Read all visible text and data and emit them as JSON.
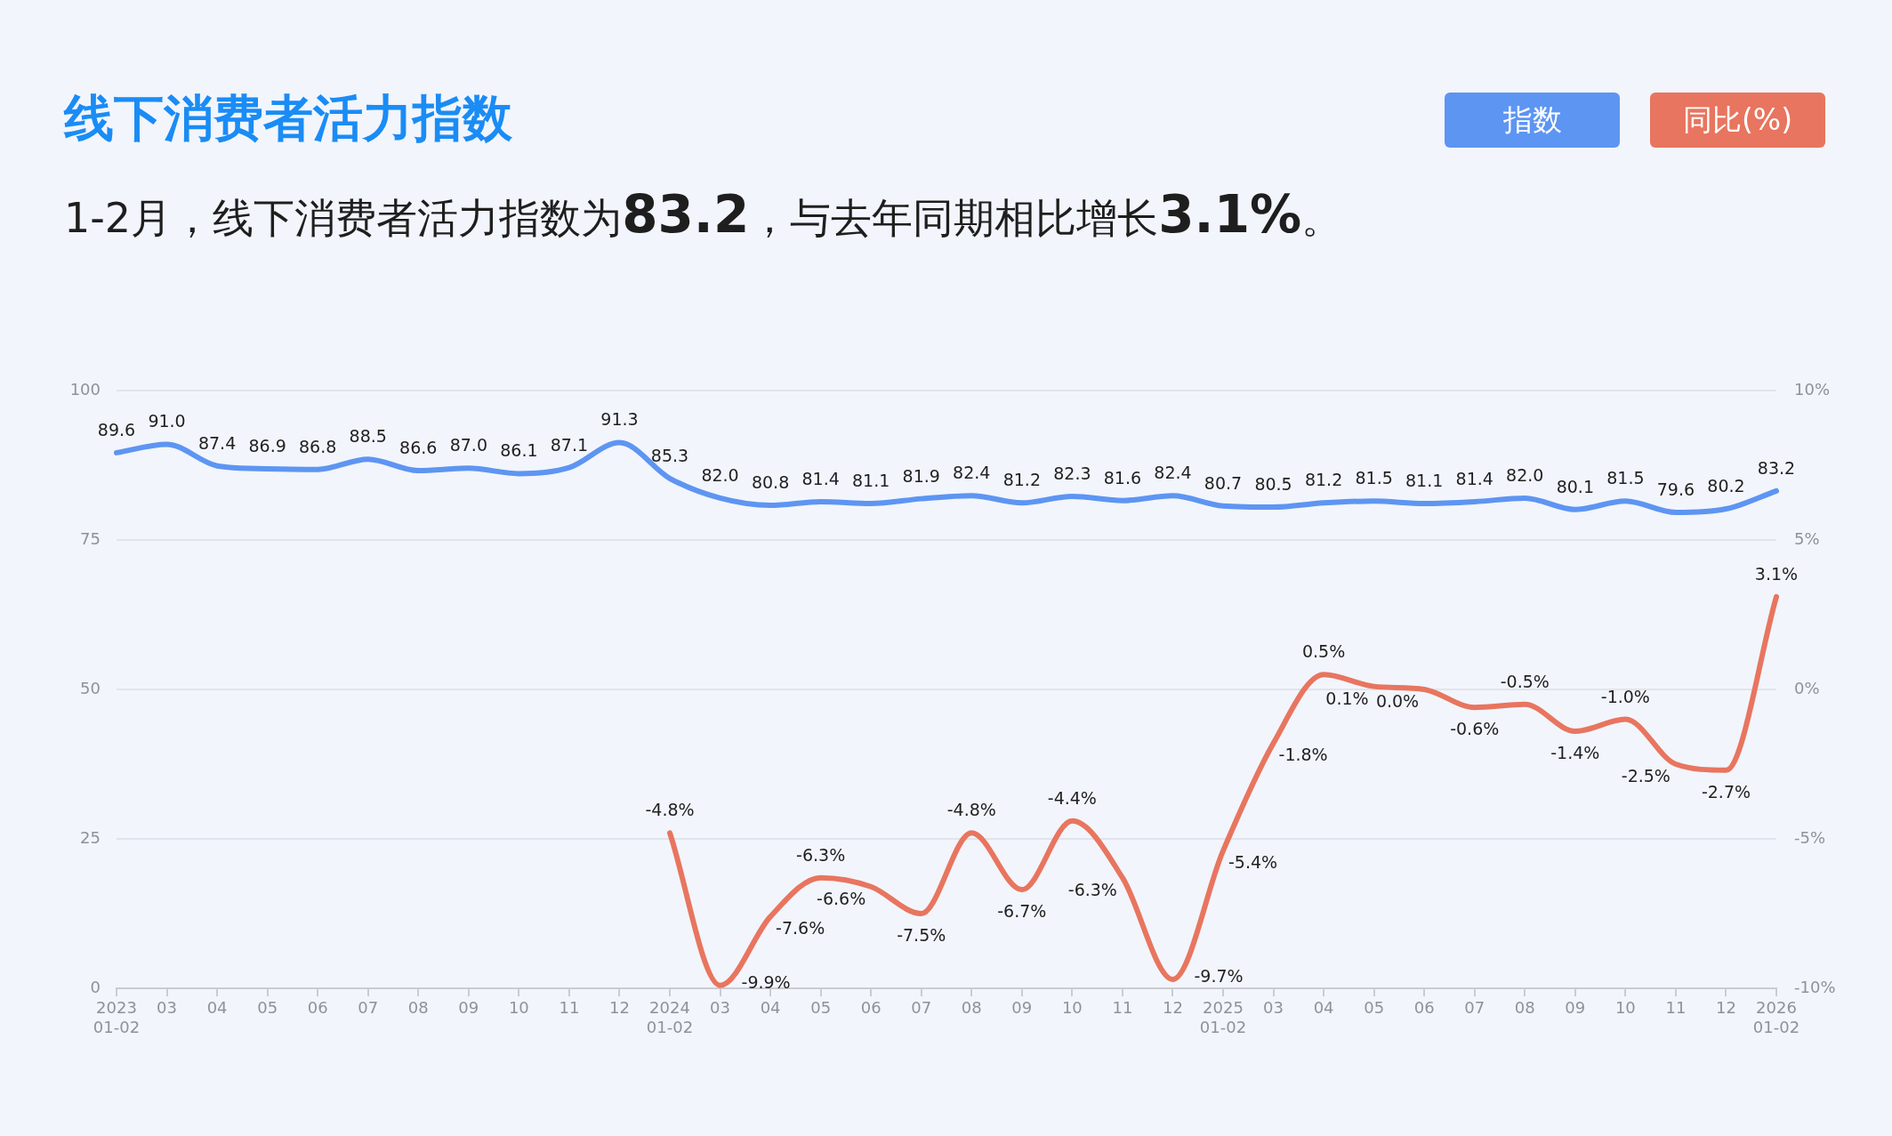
{
  "chart_data": {
    "type": "line",
    "title": "线下消费者活力指数",
    "subtitle": "1-2月，线下消费者活力指数为83.2，与去年同期相比增长3.1%。",
    "categories": [
      "2023\n01-02",
      "03",
      "04",
      "05",
      "06",
      "07",
      "08",
      "09",
      "10",
      "11",
      "12",
      "2024\n01-02",
      "03",
      "04",
      "05",
      "06",
      "07",
      "08",
      "09",
      "10",
      "11",
      "12",
      "2025\n01-02",
      "03",
      "04",
      "05",
      "06",
      "07",
      "08",
      "09",
      "10",
      "11",
      "12",
      "2026\n01-02"
    ],
    "series": [
      {
        "name": "指数",
        "color": "#5d95f2",
        "values": [
          89.6,
          91.0,
          87.4,
          86.9,
          86.8,
          88.5,
          86.6,
          87.0,
          86.1,
          87.1,
          91.3,
          85.3,
          82.0,
          80.8,
          81.4,
          81.1,
          81.9,
          82.4,
          81.2,
          82.3,
          81.6,
          82.4,
          80.7,
          80.5,
          81.2,
          81.5,
          81.1,
          81.4,
          82.0,
          80.1,
          81.5,
          79.6,
          80.2,
          83.2
        ],
        "value_labels": [
          "89.6",
          "91.0",
          "87.4",
          "86.9",
          "86.8",
          "88.5",
          "86.6",
          "87.0",
          "86.1",
          "87.1",
          "91.3",
          "85.3",
          "82.0",
          "80.8",
          "81.4",
          "81.1",
          "81.9",
          "82.4",
          "81.2",
          "82.3",
          "81.6",
          "82.4",
          "80.7",
          "80.5",
          "81.2",
          "81.5",
          "81.1",
          "81.4",
          "82.0",
          "80.1",
          "81.5",
          "79.6",
          "80.2",
          "83.2"
        ]
      },
      {
        "name": "同比(%)",
        "color": "#e8755f",
        "axis": "y2",
        "values": [
          null,
          null,
          null,
          null,
          null,
          null,
          null,
          null,
          null,
          null,
          null,
          -4.8,
          -9.9,
          -7.6,
          -6.3,
          -6.6,
          -7.5,
          -4.8,
          -6.7,
          -4.4,
          -6.3,
          -9.7,
          -5.4,
          -1.8,
          0.5,
          0.1,
          0.0,
          -0.6,
          -0.5,
          -1.4,
          -1.0,
          -2.5,
          -2.7,
          3.1
        ],
        "value_labels": [
          null,
          null,
          null,
          null,
          null,
          null,
          null,
          null,
          null,
          null,
          null,
          "-4.8%",
          "-9.9%",
          "-7.6%",
          "-6.3%",
          "-6.6%",
          "-7.5%",
          "-4.8%",
          "-6.7%",
          "-4.4%",
          "-6.3%",
          "-9.7%",
          "-5.4%",
          "-1.8%",
          "0.5%",
          "0.1%",
          "0.0%",
          "-0.6%",
          "-0.5%",
          "-1.4%",
          "-1.0%",
          "-2.5%",
          "-2.7%",
          "3.1%"
        ]
      }
    ],
    "ylim": [
      0,
      100
    ],
    "yticks": [
      0,
      25,
      50,
      75,
      100
    ],
    "y2lim": [
      -10,
      10
    ],
    "y2ticks": [
      {
        "value": -10,
        "label": "-10%"
      },
      {
        "value": -5,
        "label": "-5%"
      },
      {
        "value": 0,
        "label": "0%"
      },
      {
        "value": 5,
        "label": "5%"
      },
      {
        "value": 10,
        "label": "10%"
      }
    ],
    "grid": "y",
    "legend": "top right",
    "marker": "none",
    "line_style": "solid"
  }
}
